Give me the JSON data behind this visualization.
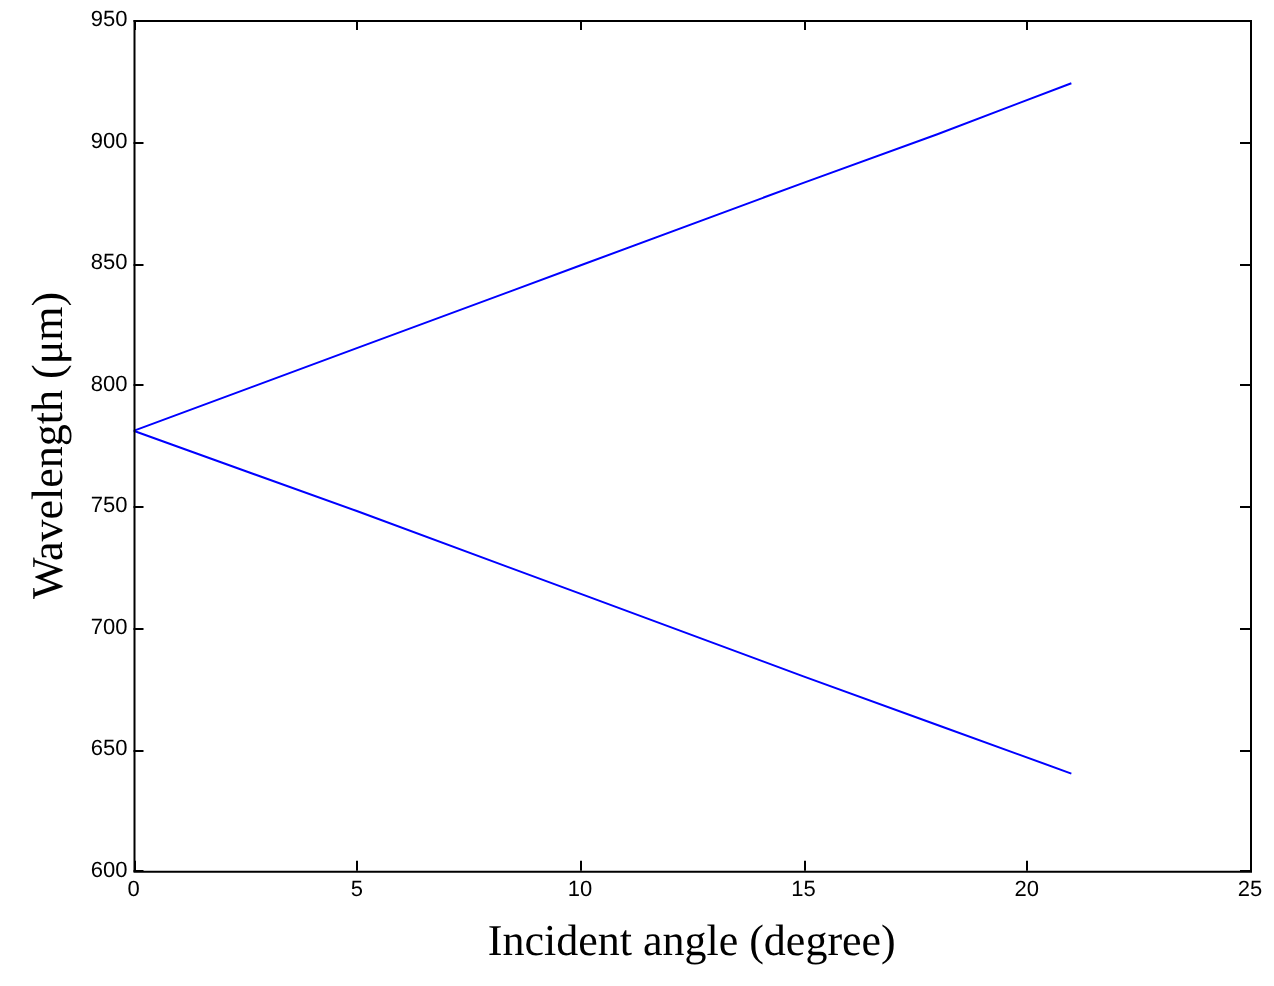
{
  "chart_data": {
    "type": "line",
    "xlabel": "Incident angle (degree)",
    "ylabel": "Wavelength (μm)",
    "series": [
      {
        "color": "#0000ff",
        "x": [
          0,
          5,
          10,
          15,
          18,
          21
        ],
        "values": [
          781,
          815,
          849,
          883,
          903,
          924
        ]
      },
      {
        "color": "#0000ff",
        "x": [
          0,
          5,
          10,
          15,
          18,
          21
        ],
        "values": [
          781,
          748,
          714,
          680,
          660,
          640
        ]
      }
    ],
    "xlim": [
      0,
      25
    ],
    "xticks": [
      0,
      5,
      10,
      15,
      20,
      25
    ],
    "ylim": [
      600,
      950
    ],
    "yticks": [
      600,
      650,
      700,
      750,
      800,
      850,
      900,
      950
    ],
    "grid": false,
    "legend": false,
    "marker": "none",
    "line_style": "solid"
  }
}
